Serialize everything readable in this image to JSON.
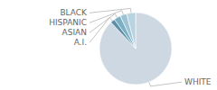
{
  "chart_data": {
    "type": "pie",
    "categories": [
      "WHITE",
      "A.I.",
      "ASIAN",
      "HISPANIC",
      "BLACK"
    ],
    "values": [
      88,
      2,
      3,
      3,
      4
    ],
    "colors": [
      "#cdd8e3",
      "#5b8fa8",
      "#7aafc4",
      "#9dc3d4",
      "#b8d4e0"
    ]
  }
}
